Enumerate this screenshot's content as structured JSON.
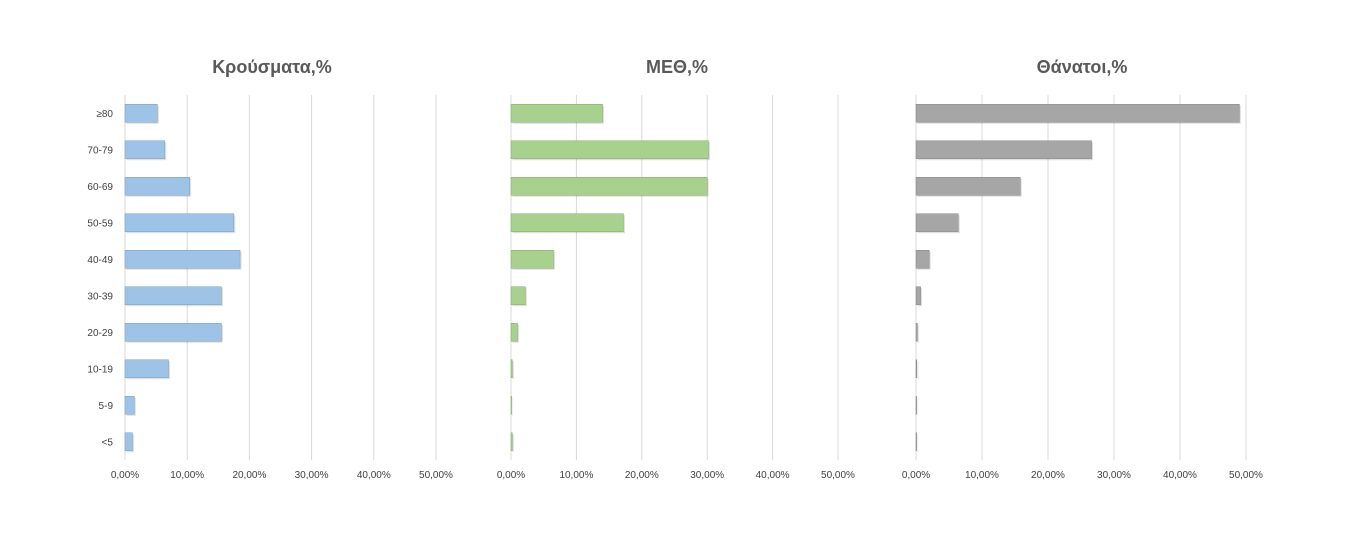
{
  "chart_data": [
    {
      "type": "bar",
      "orientation": "horizontal",
      "title": "Κρούσματα,%",
      "categories": [
        "≥80",
        "70-79",
        "60-69",
        "50-59",
        "40-49",
        "30-39",
        "20-29",
        "10-19",
        "5-9",
        "<5"
      ],
      "values": [
        5.2,
        6.4,
        10.4,
        17.5,
        18.5,
        15.5,
        15.5,
        7.0,
        1.5,
        1.2
      ],
      "xlim": [
        0,
        50
      ],
      "ticks": [
        "0,00%",
        "10,00%",
        "20,00%",
        "30,00%",
        "40,00%",
        "50,00%"
      ],
      "grid": true,
      "color": "#9dc3e6"
    },
    {
      "type": "bar",
      "orientation": "horizontal",
      "title": "ΜΕΘ,%",
      "categories": [
        "≥80",
        "70-79",
        "60-69",
        "50-59",
        "40-49",
        "30-39",
        "20-29",
        "10-19",
        "5-9",
        "<5"
      ],
      "values": [
        14.0,
        30.2,
        30.0,
        17.2,
        6.5,
        2.2,
        1.0,
        0.2,
        0.0,
        0.2
      ],
      "xlim": [
        0,
        50
      ],
      "ticks": [
        "0,00%",
        "10,00%",
        "20,00%",
        "30,00%",
        "40,00%",
        "50,00%"
      ],
      "grid": true,
      "color": "#a9d18e"
    },
    {
      "type": "bar",
      "orientation": "horizontal",
      "title": "Θάνατοι,%",
      "categories": [
        "≥80",
        "70-79",
        "60-69",
        "50-59",
        "40-49",
        "30-39",
        "20-29",
        "10-19",
        "5-9",
        "<5"
      ],
      "values": [
        49.0,
        26.6,
        15.8,
        6.4,
        2.0,
        0.7,
        0.2,
        0.1,
        0.0,
        0.0
      ],
      "xlim": [
        0,
        50
      ],
      "ticks": [
        "0,00%",
        "10,00%",
        "20,00%",
        "30,00%",
        "40,00%",
        "50,00%"
      ],
      "grid": true,
      "color": "#a6a6a6"
    }
  ]
}
